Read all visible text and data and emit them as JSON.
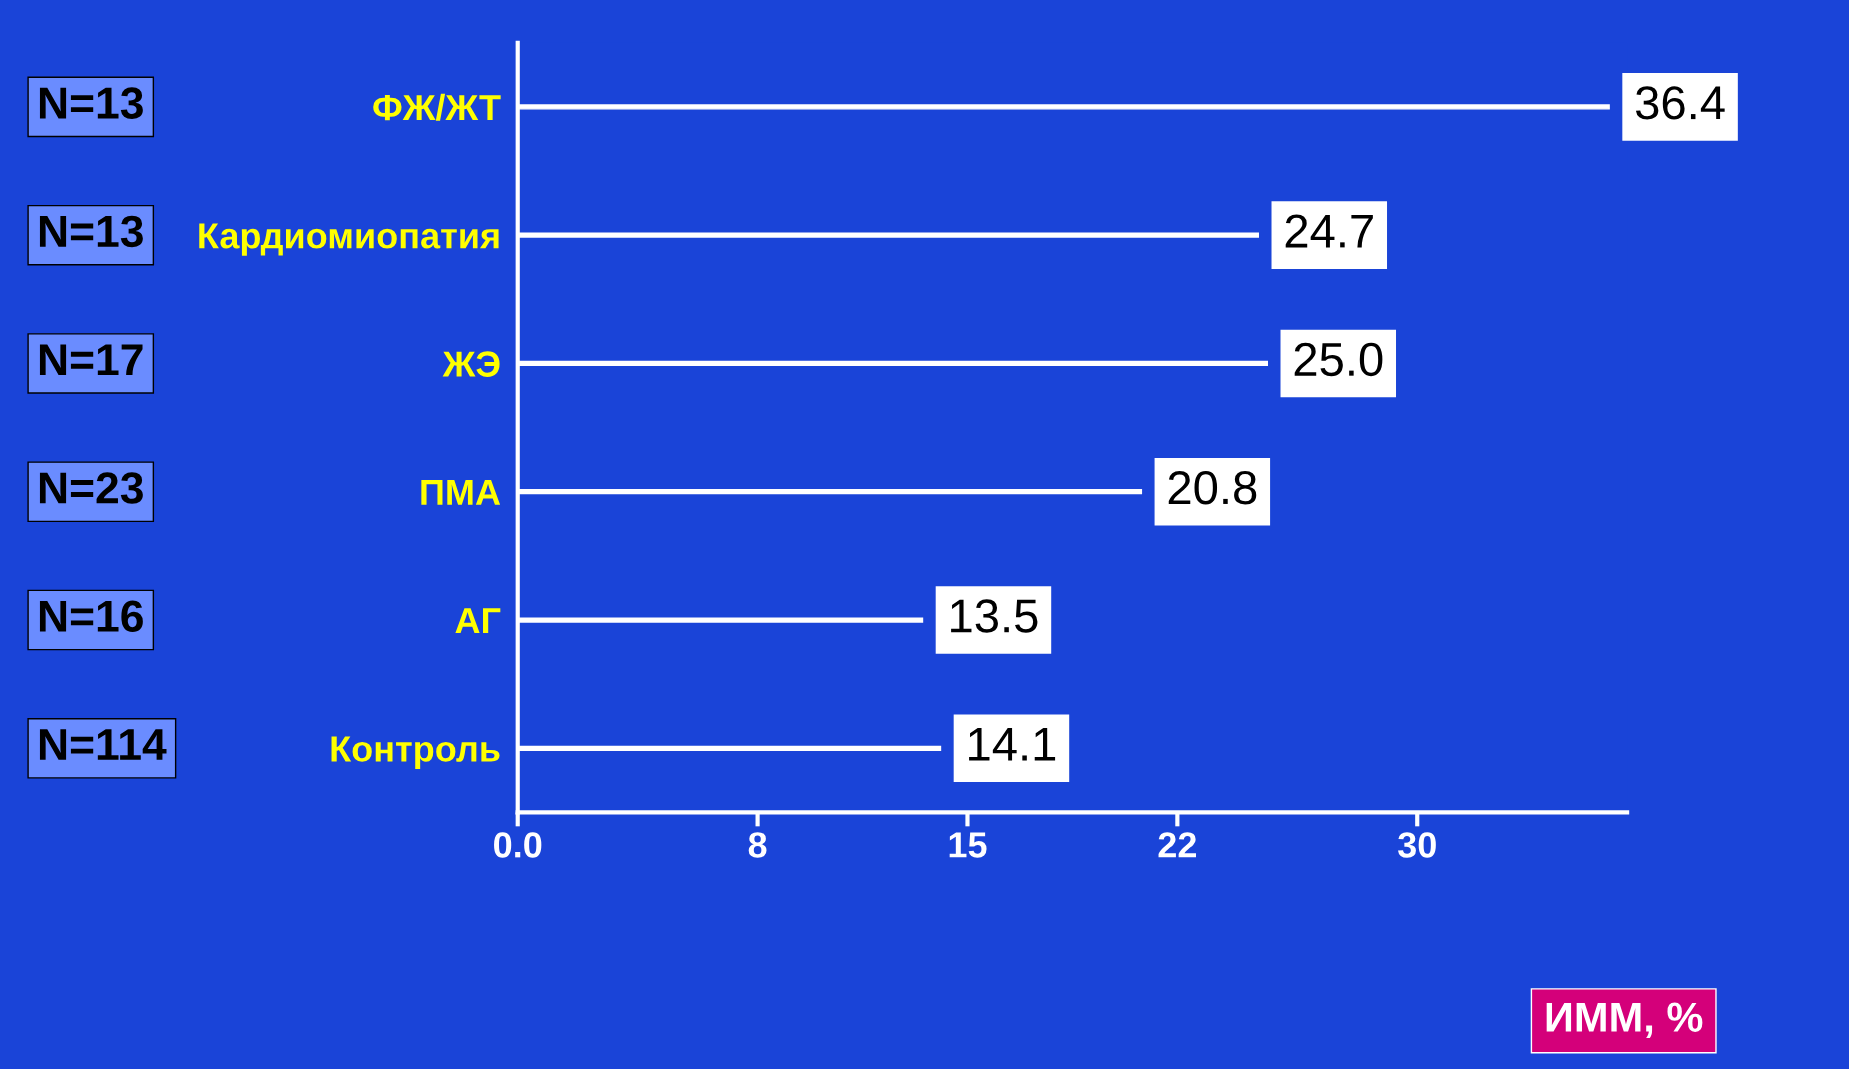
{
  "chart_data": {
    "type": "bar",
    "orientation": "horizontal",
    "xlabel": "ИММ, %",
    "categories": [
      "ФЖ/ЖТ",
      "Кардиомиопатия",
      "ЖЭ",
      "ПМА",
      "АГ",
      "Контроль"
    ],
    "values": [
      36.4,
      24.7,
      25.0,
      20.8,
      13.5,
      14.1
    ],
    "color": "#ffffff",
    "value_labels": [
      "36.4",
      "24.7",
      "25.0",
      "20.8",
      "13.5",
      "14.1"
    ],
    "xlim": [
      0,
      37
    ],
    "xticks": [
      {
        "value": 0,
        "label": "0.0"
      },
      8,
      15,
      22,
      30
    ],
    "annotations": [
      "N=13",
      "N=13",
      "N=17",
      "N=23",
      "N=16",
      "N=114"
    ],
    "grid": false,
    "legend": false
  }
}
